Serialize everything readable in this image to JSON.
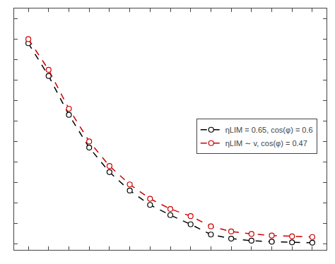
{
  "chart_data": {
    "type": "line",
    "x": [
      1,
      2,
      3,
      4,
      5,
      6,
      7,
      8,
      9,
      10,
      11,
      12,
      13,
      14,
      15
    ],
    "series": [
      {
        "name": "ηLIM = 0.65, cos(φ) = 0.6",
        "color": "#000000",
        "marker": "circle",
        "line_style": "dash",
        "values": [
          9.8,
          8.2,
          6.3,
          4.7,
          3.5,
          2.6,
          1.9,
          1.4,
          0.95,
          0.45,
          0.25,
          0.15,
          0.1,
          0.07,
          0.05
        ]
      },
      {
        "name": "ηLIM ∼ v, cos(φ) = 0.47",
        "color": "#cc0000",
        "marker": "circle",
        "line_style": "dash",
        "values": [
          10.0,
          8.5,
          6.6,
          5.0,
          3.8,
          2.9,
          2.2,
          1.7,
          1.35,
          0.85,
          0.6,
          0.48,
          0.4,
          0.36,
          0.33
        ]
      }
    ],
    "xlim": [
      0.3,
      15.7
    ],
    "ylim": [
      -0.3,
      11.5
    ],
    "xticks": [
      1,
      2,
      3,
      4,
      5,
      6,
      7,
      8,
      9,
      10,
      11,
      12,
      13,
      14,
      15
    ],
    "yticks": [
      0,
      1,
      2,
      3,
      4,
      5,
      6,
      7,
      8,
      9,
      10,
      11
    ],
    "grid": false,
    "legend": "center right",
    "tick_labels": false
  }
}
